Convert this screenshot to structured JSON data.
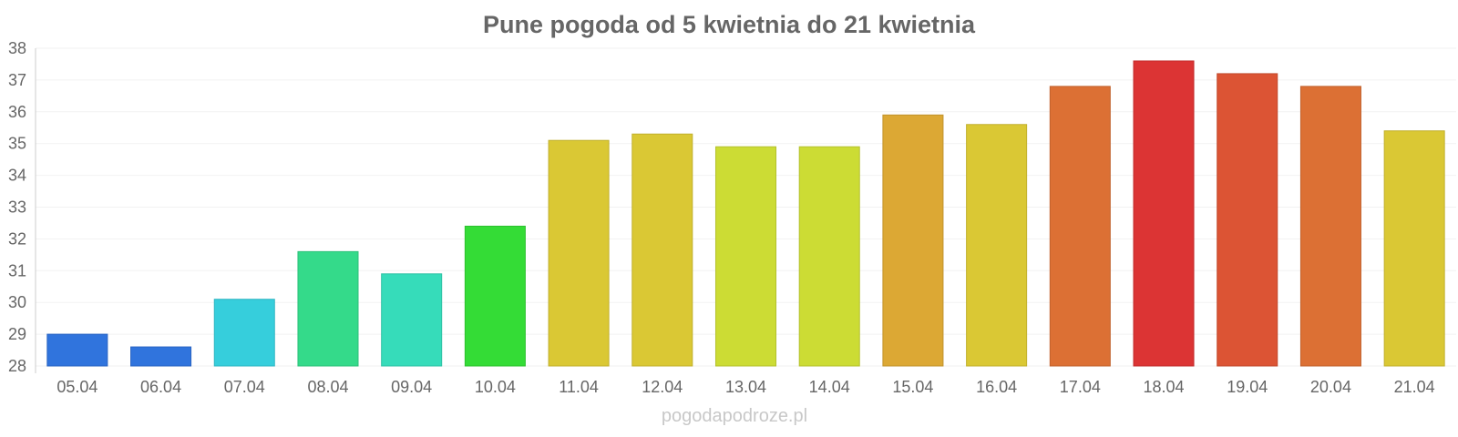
{
  "chart_data": {
    "type": "bar",
    "title": "Pune pogoda od 5 kwietnia do 21 kwietnia",
    "xlabel": "",
    "ylabel": "",
    "ylim": [
      28,
      38
    ],
    "yticks": [
      "28",
      "29",
      "30",
      "31",
      "32",
      "33",
      "34",
      "35",
      "36",
      "37",
      "38"
    ],
    "grid": true,
    "categories": [
      "05.04",
      "06.04",
      "07.04",
      "08.04",
      "09.04",
      "10.04",
      "11.04",
      "12.04",
      "13.04",
      "14.04",
      "15.04",
      "16.04",
      "17.04",
      "18.04",
      "19.04",
      "20.04",
      "21.04"
    ],
    "values": [
      29.0,
      28.6,
      30.1,
      31.6,
      30.9,
      32.4,
      35.1,
      35.3,
      34.9,
      34.9,
      35.9,
      35.6,
      36.8,
      37.6,
      37.2,
      36.8,
      35.4
    ],
    "colors": [
      "#3074dd",
      "#3074dd",
      "#36cedc",
      "#34da8a",
      "#36dcba",
      "#34dc36",
      "#dac834",
      "#dac834",
      "#ccdc34",
      "#ccdc34",
      "#dca834",
      "#dac834",
      "#dc7034",
      "#dc3434",
      "#dc5434",
      "#dc7034",
      "#dac834"
    ],
    "border_colors": [
      "#2a64c2",
      "#2a64c2",
      "#2fb5c2",
      "#2dc079",
      "#2fc1a4",
      "#2dc12f",
      "#c1b02d",
      "#c1b02d",
      "#b4c12d",
      "#b4c12d",
      "#c1932d",
      "#c1b02d",
      "#c1622d",
      "#c12d2d",
      "#c1492d",
      "#c1622d",
      "#c1b02d"
    ]
  },
  "watermark": "pogodapodroze.pl"
}
